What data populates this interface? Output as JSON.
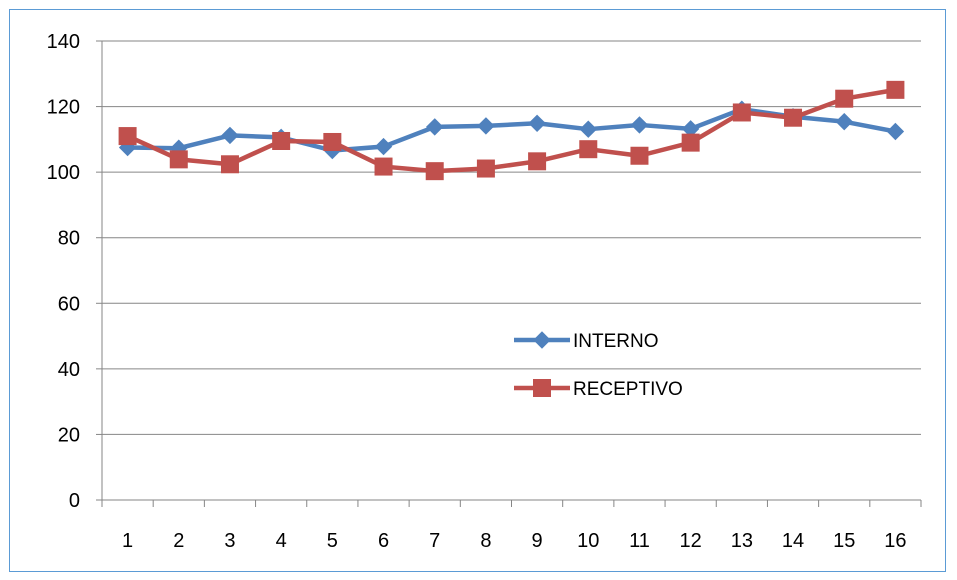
{
  "chart_data": {
    "type": "line",
    "categories": [
      "1",
      "2",
      "3",
      "4",
      "5",
      "6",
      "7",
      "8",
      "9",
      "10",
      "11",
      "12",
      "13",
      "14",
      "15",
      "16"
    ],
    "ylim": [
      0,
      140
    ],
    "yticks": [
      0,
      20,
      40,
      60,
      80,
      100,
      120,
      140
    ],
    "grid": "horizontal",
    "legend_position": "center-right",
    "series": [
      {
        "name": "INTERNO",
        "color": "#4f81bd",
        "marker": "diamond",
        "values": [
          107.5,
          107.3,
          111.2,
          110.6,
          106.6,
          107.8,
          113.8,
          114.1,
          114.9,
          113.1,
          114.4,
          113.2,
          119.2,
          116.9,
          115.4,
          112.4
        ]
      },
      {
        "name": "RECEPTIVO",
        "color": "#c0504d",
        "marker": "square",
        "values": [
          111.0,
          103.9,
          102.4,
          109.5,
          109.2,
          101.7,
          100.3,
          101.1,
          103.3,
          107.0,
          105.0,
          109.0,
          118.2,
          116.6,
          122.4,
          125.1
        ]
      }
    ]
  }
}
